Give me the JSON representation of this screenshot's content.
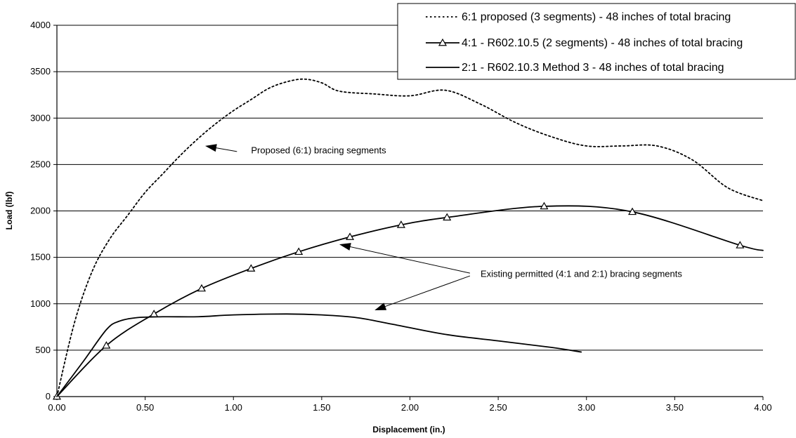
{
  "chart_data": {
    "type": "line",
    "xlabel": "Displacement (in.)",
    "ylabel": "Load (lbf)",
    "xlim": [
      0,
      4
    ],
    "ylim": [
      0,
      4000
    ],
    "x_ticks": [
      0,
      0.5,
      1,
      1.5,
      2,
      2.5,
      3,
      3.5,
      4
    ],
    "x_tick_labels": [
      "0.00",
      "0.50",
      "1.00",
      "1.50",
      "2.00",
      "2.50",
      "3.00",
      "3.50",
      "4.00"
    ],
    "y_ticks": [
      0,
      500,
      1000,
      1500,
      2000,
      2500,
      3000,
      3500,
      4000
    ],
    "y_tick_labels": [
      "0",
      "500",
      "1000",
      "1500",
      "2000",
      "2500",
      "3000",
      "3500",
      "4000"
    ],
    "grid": "horizontal",
    "legend_position": "top-right",
    "series": [
      {
        "name": "6:1 proposed (3 segments) - 48 inches of total bracing",
        "style": "dotted",
        "markers": false,
        "color": "#000000",
        "x": [
          0,
          0.1,
          0.2,
          0.3,
          0.4,
          0.5,
          0.6,
          0.7,
          0.8,
          0.9,
          1.0,
          1.1,
          1.2,
          1.3,
          1.4,
          1.5,
          1.6,
          1.8,
          2.0,
          2.2,
          2.4,
          2.6,
          2.8,
          3.0,
          3.2,
          3.4,
          3.6,
          3.8,
          4.0
        ],
        "y": [
          0,
          800,
          1350,
          1700,
          1950,
          2200,
          2400,
          2600,
          2780,
          2940,
          3080,
          3200,
          3320,
          3390,
          3420,
          3380,
          3290,
          3260,
          3240,
          3300,
          3150,
          2950,
          2800,
          2700,
          2700,
          2700,
          2550,
          2250,
          2110
        ]
      },
      {
        "name": "4:1 - R602.10.5 (2 segments) - 48 inches of total bracing",
        "style": "solid",
        "markers": true,
        "marker": "triangle",
        "color": "#000000",
        "x": [
          0,
          0.28,
          0.55,
          0.82,
          1.1,
          1.37,
          1.66,
          1.95,
          2.21,
          2.76,
          3.26,
          3.87,
          4.0
        ],
        "y": [
          0,
          550,
          890,
          1165,
          1380,
          1560,
          1720,
          1850,
          1930,
          2050,
          1990,
          1630,
          1575
        ]
      },
      {
        "name": "2:1 - R602.10.3  Method 3 - 48 inches of total bracing",
        "style": "solid",
        "markers": false,
        "color": "#000000",
        "x": [
          0,
          0.15,
          0.28,
          0.35,
          0.45,
          0.6,
          0.8,
          1.0,
          1.3,
          1.5,
          1.7,
          1.9,
          2.2,
          2.5,
          2.8,
          2.97
        ],
        "y": [
          0,
          380,
          720,
          810,
          850,
          860,
          860,
          880,
          890,
          880,
          850,
          780,
          670,
          600,
          530,
          480
        ]
      }
    ],
    "annotations": [
      {
        "text": "Proposed (6:1) bracing segments",
        "text_x": 1.1,
        "text_y": 2620,
        "arrows": [
          {
            "from_x": 1.02,
            "from_y": 2640,
            "to_x": 0.84,
            "to_y": 2700
          }
        ]
      },
      {
        "text": "Existing permitted (4:1 and 2:1) bracing segments",
        "text_x": 2.4,
        "text_y": 1290,
        "arrows": [
          {
            "from_x": 2.34,
            "from_y": 1330,
            "to_x": 1.6,
            "to_y": 1640
          },
          {
            "from_x": 2.34,
            "from_y": 1300,
            "to_x": 1.8,
            "to_y": 930
          }
        ]
      }
    ]
  }
}
